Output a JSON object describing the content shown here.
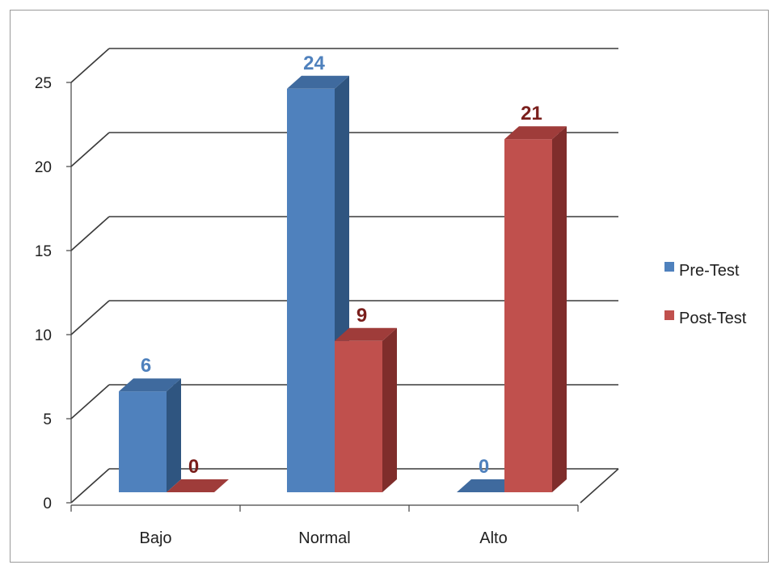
{
  "chart_data": {
    "type": "bar",
    "categories": [
      "Bajo",
      "Normal",
      "Alto"
    ],
    "series": [
      {
        "name": "Pre-Test",
        "values": [
          6,
          24,
          0
        ]
      },
      {
        "name": "Post-Test",
        "values": [
          0,
          9,
          21
        ]
      }
    ],
    "ylim": [
      0,
      25
    ],
    "yticks": [
      "0",
      "5",
      "10",
      "15",
      "20",
      "25"
    ],
    "grid": true,
    "legend_position": "right",
    "style": "3d-clustered-column",
    "colors": {
      "pre_front": "#4f81bd",
      "pre_side": "#2f5580",
      "pre_top": "#3f6a9e",
      "pre_label": "#4f81bd",
      "post_front": "#c0504d",
      "post_side": "#7f2d2b",
      "post_top": "#9f3c3a",
      "post_label": "#7a1f1c",
      "grid": "#3a3a3a"
    }
  }
}
